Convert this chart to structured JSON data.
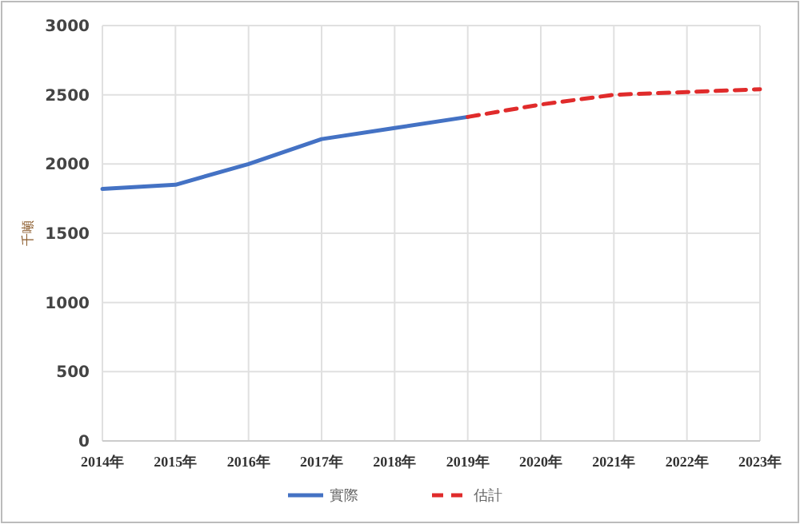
{
  "chart_data": {
    "type": "line",
    "ylabel": "千噸",
    "categories": [
      "2014年",
      "2015年",
      "2016年",
      "2017年",
      "2018年",
      "2019年",
      "2020年",
      "2021年",
      "2022年",
      "2023年"
    ],
    "series": [
      {
        "name": "實際",
        "color": "#4472c4",
        "line_style": "solid",
        "values": [
          1820,
          1850,
          2000,
          2180,
          2260,
          2340,
          null,
          null,
          null,
          null
        ]
      },
      {
        "name": "估計",
        "color": "#e02b2b",
        "line_style": "dashed",
        "values": [
          null,
          null,
          null,
          null,
          null,
          2340,
          2430,
          2500,
          2520,
          2540
        ]
      }
    ],
    "ylim": [
      0,
      3000
    ],
    "yticks": [
      0,
      500,
      1000,
      1500,
      2000,
      2500,
      3000
    ],
    "grid": true,
    "legend": "bottom",
    "marker": "none"
  }
}
